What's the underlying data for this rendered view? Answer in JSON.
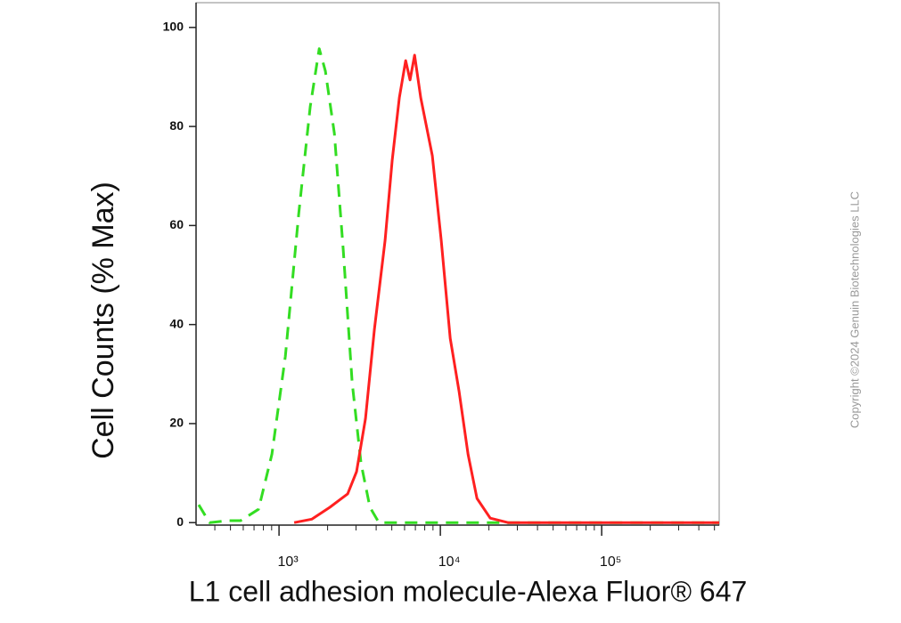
{
  "chart_data": {
    "type": "line",
    "xlabel": "L1 cell adhesion molecule-Alexa Fluor® 647",
    "ylabel": "Cell Counts (% Max)",
    "annotation": "Copyright ©2024 Genuin Biotechnologies LLC",
    "xscale": "log",
    "xlim": [
      306,
      535000
    ],
    "ylim": [
      -0.5,
      105
    ],
    "xticks": [
      {
        "value": 1000,
        "label": "10³"
      },
      {
        "value": 10000,
        "label": "10⁴"
      },
      {
        "value": 100000,
        "label": "10⁵"
      }
    ],
    "xticks_minor": [
      400,
      500,
      600,
      700,
      800,
      900,
      2000,
      3000,
      4000,
      5000,
      6000,
      7000,
      8000,
      9000,
      20000,
      30000,
      40000,
      50000,
      60000,
      70000,
      80000,
      90000,
      200000,
      300000,
      400000,
      500000
    ],
    "yticks": [
      0,
      20,
      40,
      60,
      80,
      100
    ],
    "grid": false,
    "series": [
      {
        "color": "#33dd22",
        "dash": "dashed",
        "x": [
          318,
          371,
          479,
          578,
          746,
          903,
          1094,
          1324,
          1561,
          1774,
          1938,
          2203,
          2500,
          2840,
          3222,
          3660,
          4160,
          10700,
          535000
        ],
        "values": [
          3.6,
          0,
          0.4,
          0.4,
          2.7,
          13.8,
          33.6,
          62.4,
          84,
          95.7,
          91.2,
          78.6,
          55.2,
          28.2,
          12,
          3.1,
          0,
          0,
          0
        ]
      },
      {
        "color": "#ff2020",
        "dash": "solid",
        "x": [
          1242,
          1600,
          2066,
          2663,
          3025,
          3435,
          3902,
          4543,
          5032,
          5570,
          6093,
          6490,
          6920,
          7560,
          8910,
          10130,
          11510,
          13070,
          14840,
          16860,
          20390,
          26300,
          535000
        ],
        "values": [
          0,
          0.7,
          3.1,
          5.8,
          10.3,
          21,
          39,
          57,
          73.2,
          85.8,
          93.3,
          89.4,
          94.4,
          85.8,
          74.1,
          57,
          37.2,
          26.4,
          13.8,
          4.9,
          0.9,
          0,
          0
        ]
      }
    ]
  }
}
